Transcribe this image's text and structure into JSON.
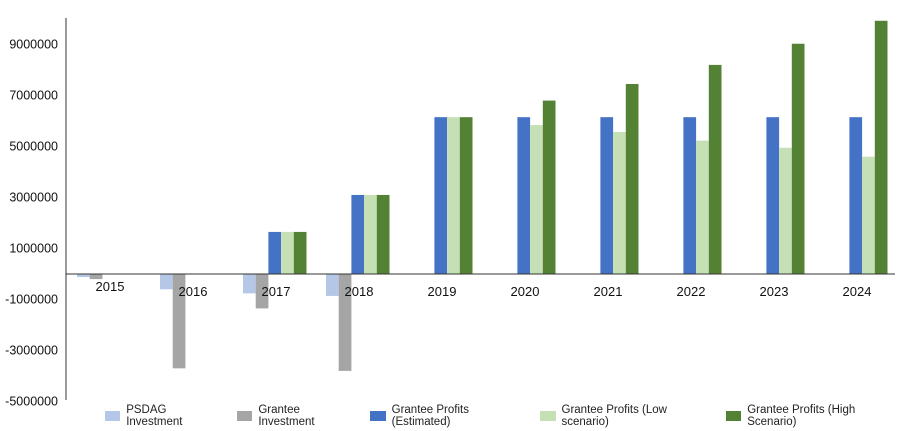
{
  "chart_data": {
    "type": "bar",
    "title": "",
    "xlabel": "",
    "ylabel": "",
    "categories": [
      "2015",
      "2016",
      "2017",
      "2018",
      "2019",
      "2020",
      "2021",
      "2022",
      "2023",
      "2024"
    ],
    "yticks": [
      "9000000",
      "7000000",
      "5000000",
      "3000000",
      "1000000",
      "-1000000",
      "-3000000",
      "-5000000"
    ],
    "ylim": [
      -5200000,
      10100000
    ],
    "grid": false,
    "legend_position": "bottom",
    "series": [
      {
        "name": "PSDAG Investment",
        "color": "#b4c7e7",
        "values": [
          -120000,
          -600000,
          -760000,
          -860000,
          0,
          0,
          0,
          0,
          0,
          0
        ]
      },
      {
        "name": "Grantee Investment",
        "color": "#a5a5a5",
        "values": [
          -200000,
          -3700000,
          -1350000,
          -3800000,
          0,
          0,
          0,
          0,
          0,
          0
        ]
      },
      {
        "name": "Grantee Profits (Estimated)",
        "color": "#4472c4",
        "values": [
          0,
          0,
          1650000,
          3100000,
          6150000,
          6150000,
          6150000,
          6150000,
          6150000,
          6150000
        ]
      },
      {
        "name": "Grantee Profits (Low scenario)",
        "color": "#c5e0b4",
        "values": [
          0,
          0,
          1650000,
          3100000,
          6150000,
          5840000,
          5570000,
          5230000,
          4950000,
          4600000
        ]
      },
      {
        "name": "Grantee Profits (High Scenario)",
        "color": "#548235",
        "values": [
          0,
          0,
          1650000,
          3100000,
          6150000,
          6800000,
          7450000,
          8200000,
          9030000,
          9930000
        ]
      }
    ]
  }
}
